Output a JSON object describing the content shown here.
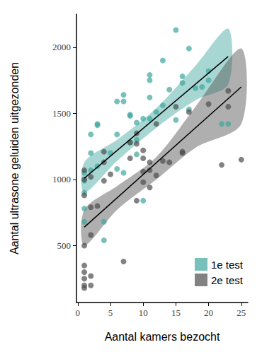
{
  "chart_data": {
    "type": "scatter",
    "x_label": "Aantal kamers bezocht",
    "y_label": "Aantal ultrasone geluiden uitgezonden",
    "xlim": [
      -0.2,
      26
    ],
    "xticks": [
      0,
      5,
      10,
      15,
      20,
      25
    ],
    "ylim": [
      70,
      2250
    ],
    "yticks": [
      500,
      1000,
      1500,
      2000
    ],
    "grid": false,
    "legend": "lower right",
    "series": [
      {
        "name": "1e test",
        "color": "#3fa79e",
        "marker": "circle",
        "x": [
          1,
          1,
          1,
          1,
          1,
          2,
          2,
          2,
          3,
          3,
          3,
          4,
          4,
          5,
          6,
          6,
          6,
          7,
          7,
          7,
          8,
          8,
          8,
          9,
          9,
          9,
          10,
          10,
          11,
          11,
          11,
          11,
          12,
          13,
          13,
          14,
          15,
          15,
          16,
          16,
          17,
          17,
          18,
          19,
          20,
          20,
          22,
          23
        ],
        "values": [
          1050,
          990,
          900,
          780,
          680,
          1340,
          1200,
          1070,
          1420,
          1410,
          1100,
          680,
          540,
          1200,
          1590,
          1340,
          1080,
          1640,
          1590,
          1050,
          1480,
          1490,
          1280,
          1430,
          1300,
          1190,
          1460,
          840,
          1790,
          1750,
          1620,
          1460,
          1510,
          1900,
          1560,
          1680,
          2130,
          1450,
          1780,
          1730,
          1990,
          1530,
          1690,
          1700,
          1820,
          1750,
          1420,
          1420
        ],
        "fit": {
          "x": [
            1,
            23
          ],
          "y": [
            1010,
            1930
          ]
        },
        "band": {
          "x": [
            1,
            6,
            12,
            18,
            23
          ],
          "lower": [
            900,
            1140,
            1390,
            1600,
            1720
          ],
          "upper": [
            1130,
            1300,
            1540,
            1860,
            2140
          ]
        }
      },
      {
        "name": "2e test",
        "color": "#4d4d4d",
        "marker": "circle",
        "x": [
          1,
          1,
          1,
          1,
          1,
          1,
          1,
          1,
          1,
          2,
          2,
          2,
          2,
          2,
          3,
          4,
          4,
          4,
          5,
          7,
          8,
          8,
          9,
          9,
          9,
          10,
          10,
          10,
          10,
          11,
          11,
          11,
          12,
          12,
          13,
          14,
          15,
          16,
          16,
          17,
          20,
          22,
          23,
          23,
          25
        ],
        "values": [
          1070,
          1000,
          880,
          500,
          350,
          300,
          250,
          200,
          180,
          1020,
          790,
          580,
          270,
          200,
          800,
          1210,
          1130,
          990,
          1040,
          380,
          1280,
          1160,
          1350,
          1270,
          840,
          1220,
          1160,
          1060,
          980,
          1130,
          1070,
          940,
          1420,
          1030,
          1140,
          1130,
          1550,
          1210,
          1200,
          1510,
          1570,
          1110,
          1670,
          1550,
          1150
        ],
        "fit": {
          "x": [
            1,
            25
          ],
          "y": [
            640,
            1700
          ]
        },
        "band": {
          "x": [
            1,
            6,
            12,
            18,
            25
          ],
          "lower": [
            500,
            770,
            1000,
            1240,
            1420
          ],
          "upper": [
            770,
            950,
            1170,
            1550,
            1990
          ]
        }
      }
    ]
  }
}
